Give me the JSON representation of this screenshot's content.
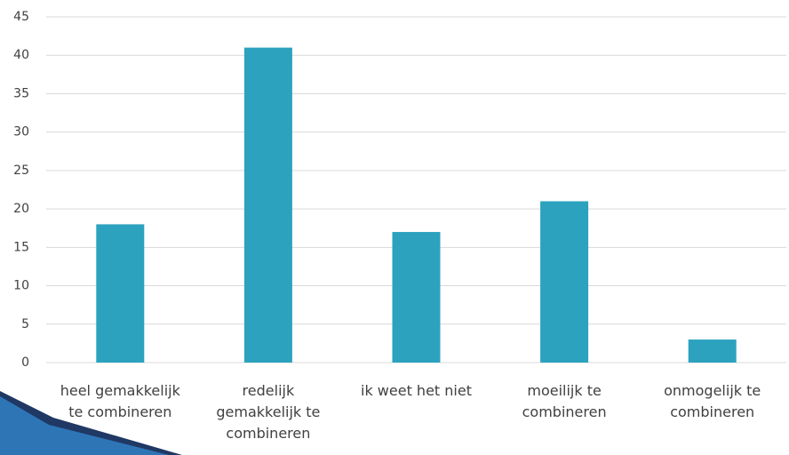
{
  "chart_data": {
    "type": "bar",
    "categories": [
      "heel gemakkelijk te combineren",
      "redelijk gemakkelijk te combineren",
      "ik weet het niet",
      "moeilijk te combineren",
      "onmogelijk te combineren"
    ],
    "values": [
      18,
      41,
      17,
      21,
      3
    ],
    "color": "#2ca2bf",
    "ylim": [
      0,
      45
    ],
    "yticks": [
      0,
      5,
      10,
      15,
      20,
      25,
      30,
      35,
      40,
      45
    ],
    "grid": true
  }
}
